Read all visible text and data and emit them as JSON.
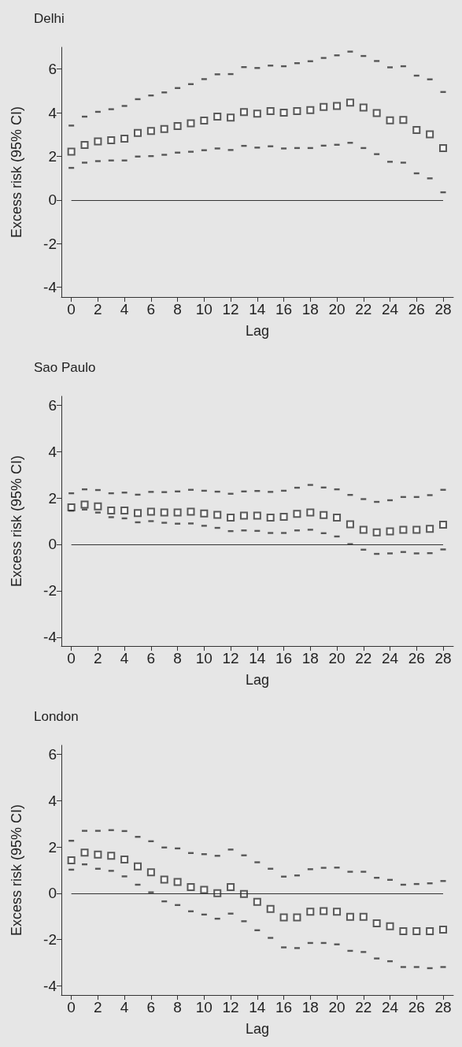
{
  "chart_data": [
    {
      "type": "scatter",
      "title": "Delhi",
      "xlabel": "Lag",
      "ylabel": "Excess risk (95% CI)",
      "grid": false,
      "xlim": [
        -0.75,
        28.77
      ],
      "ylim": [
        -4.45,
        7
      ],
      "xticks": [
        0,
        2,
        4,
        6,
        8,
        10,
        12,
        14,
        16,
        18,
        20,
        22,
        24,
        26,
        28
      ],
      "yticks": [
        -4,
        -2,
        0,
        2,
        4,
        6
      ],
      "ref_lines": [
        {
          "axis": "y",
          "value": 0,
          "color": "#333333"
        }
      ],
      "x": [
        0,
        1,
        2,
        3,
        4,
        5,
        6,
        7,
        8,
        9,
        10,
        11,
        12,
        13,
        14,
        15,
        16,
        17,
        18,
        19,
        20,
        21,
        22,
        23,
        24,
        25,
        26,
        27,
        28
      ],
      "series": [
        {
          "color": "#333333",
          "marker": "square",
          "values": [
            2.21,
            2.52,
            2.68,
            2.74,
            2.81,
            3.07,
            3.16,
            3.25,
            3.39,
            3.51,
            3.64,
            3.82,
            3.78,
            4.03,
            3.96,
            4.07,
            4.0,
            4.07,
            4.12,
            4.26,
            4.31,
            4.46,
            4.24,
            3.98,
            3.65,
            3.67,
            3.21,
            3.01,
            2.38
          ]
        },
        {
          "color": "#333333",
          "values": [
            1.47,
            1.71,
            1.78,
            1.81,
            1.81,
            1.99,
            2.01,
            2.07,
            2.17,
            2.21,
            2.28,
            2.36,
            2.29,
            2.48,
            2.4,
            2.46,
            2.36,
            2.38,
            2.38,
            2.49,
            2.53,
            2.62,
            2.38,
            2.1,
            1.75,
            1.71,
            1.22,
            0.99,
            0.35
          ]
        },
        {
          "color": "#333333",
          "values": [
            3.41,
            3.82,
            4.04,
            4.16,
            4.31,
            4.62,
            4.79,
            4.93,
            5.13,
            5.31,
            5.54,
            5.76,
            5.77,
            6.09,
            6.05,
            6.16,
            6.13,
            6.27,
            6.36,
            6.51,
            6.63,
            6.8,
            6.6,
            6.37,
            6.08,
            6.13,
            5.7,
            5.53,
            4.95
          ]
        }
      ]
    },
    {
      "type": "scatter",
      "title": "Sao Paulo",
      "xlabel": "Lag",
      "ylabel": "Excess risk (95% CI)",
      "grid": false,
      "xlim": [
        -0.75,
        28.77
      ],
      "ylim": [
        -4.38,
        6.38
      ],
      "xticks": [
        0,
        2,
        4,
        6,
        8,
        10,
        12,
        14,
        16,
        18,
        20,
        22,
        24,
        26,
        28
      ],
      "yticks": [
        -4,
        -2,
        0,
        2,
        4,
        6
      ],
      "ref_lines": [
        {
          "axis": "y",
          "value": 0,
          "color": "#333333"
        }
      ],
      "x": [
        0,
        1,
        2,
        3,
        4,
        5,
        6,
        7,
        8,
        9,
        10,
        11,
        12,
        13,
        14,
        15,
        16,
        17,
        18,
        19,
        20,
        21,
        22,
        23,
        24,
        25,
        26,
        27,
        28
      ],
      "series": [
        {
          "color": "#333333",
          "marker": "square",
          "values": [
            1.59,
            1.71,
            1.64,
            1.46,
            1.46,
            1.35,
            1.41,
            1.37,
            1.37,
            1.41,
            1.33,
            1.27,
            1.15,
            1.24,
            1.24,
            1.15,
            1.19,
            1.31,
            1.37,
            1.26,
            1.15,
            0.86,
            0.63,
            0.52,
            0.56,
            0.63,
            0.63,
            0.67,
            0.85
          ]
        },
        {
          "color": "#333333",
          "values": [
            1.45,
            1.5,
            1.37,
            1.17,
            1.12,
            0.95,
            1.0,
            0.93,
            0.89,
            0.9,
            0.8,
            0.71,
            0.57,
            0.6,
            0.58,
            0.49,
            0.49,
            0.6,
            0.63,
            0.48,
            0.34,
            0.01,
            -0.23,
            -0.41,
            -0.39,
            -0.33,
            -0.39,
            -0.38,
            -0.22
          ]
        },
        {
          "color": "#333333",
          "values": [
            2.2,
            2.37,
            2.34,
            2.2,
            2.23,
            2.14,
            2.26,
            2.25,
            2.28,
            2.35,
            2.31,
            2.27,
            2.18,
            2.28,
            2.3,
            2.26,
            2.31,
            2.44,
            2.56,
            2.45,
            2.37,
            2.13,
            1.95,
            1.83,
            1.9,
            2.04,
            2.04,
            2.12,
            2.35
          ]
        }
      ]
    },
    {
      "type": "scatter",
      "title": "London",
      "xlabel": "Lag",
      "ylabel": "Excess risk (95% CI)",
      "grid": false,
      "xlim": [
        -0.75,
        28.77
      ],
      "ylim": [
        -4.4,
        6.4
      ],
      "xticks": [
        0,
        2,
        4,
        6,
        8,
        10,
        12,
        14,
        16,
        18,
        20,
        22,
        24,
        26,
        28
      ],
      "yticks": [
        -4,
        -2,
        0,
        2,
        4,
        6
      ],
      "ref_lines": [
        {
          "axis": "y",
          "value": 0,
          "color": "#333333"
        }
      ],
      "x": [
        0,
        1,
        2,
        3,
        4,
        5,
        6,
        7,
        8,
        9,
        10,
        11,
        12,
        13,
        14,
        15,
        16,
        17,
        18,
        19,
        20,
        21,
        22,
        23,
        24,
        25,
        26,
        27,
        28
      ],
      "series": [
        {
          "color": "#333333",
          "marker": "square",
          "values": [
            1.43,
            1.76,
            1.67,
            1.62,
            1.46,
            1.16,
            0.91,
            0.59,
            0.49,
            0.27,
            0.15,
            0.0,
            0.27,
            -0.03,
            -0.37,
            -0.68,
            -1.04,
            -1.04,
            -0.8,
            -0.77,
            -0.8,
            -1.02,
            -1.02,
            -1.3,
            -1.43,
            -1.64,
            -1.64,
            -1.64,
            -1.57
          ]
        },
        {
          "color": "#333333",
          "values": [
            1.02,
            1.25,
            1.06,
            0.97,
            0.73,
            0.37,
            0.04,
            -0.35,
            -0.51,
            -0.78,
            -0.92,
            -1.1,
            -0.88,
            -1.21,
            -1.6,
            -1.93,
            -2.34,
            -2.37,
            -2.15,
            -2.15,
            -2.21,
            -2.49,
            -2.54,
            -2.82,
            -2.94,
            -3.19,
            -3.19,
            -3.24,
            -3.19
          ]
        },
        {
          "color": "#333333",
          "values": [
            2.27,
            2.7,
            2.7,
            2.73,
            2.69,
            2.44,
            2.25,
            1.98,
            1.94,
            1.74,
            1.69,
            1.62,
            1.89,
            1.64,
            1.34,
            1.06,
            0.72,
            0.77,
            1.04,
            1.1,
            1.11,
            0.93,
            0.93,
            0.67,
            0.58,
            0.37,
            0.4,
            0.43,
            0.53
          ]
        }
      ]
    }
  ]
}
